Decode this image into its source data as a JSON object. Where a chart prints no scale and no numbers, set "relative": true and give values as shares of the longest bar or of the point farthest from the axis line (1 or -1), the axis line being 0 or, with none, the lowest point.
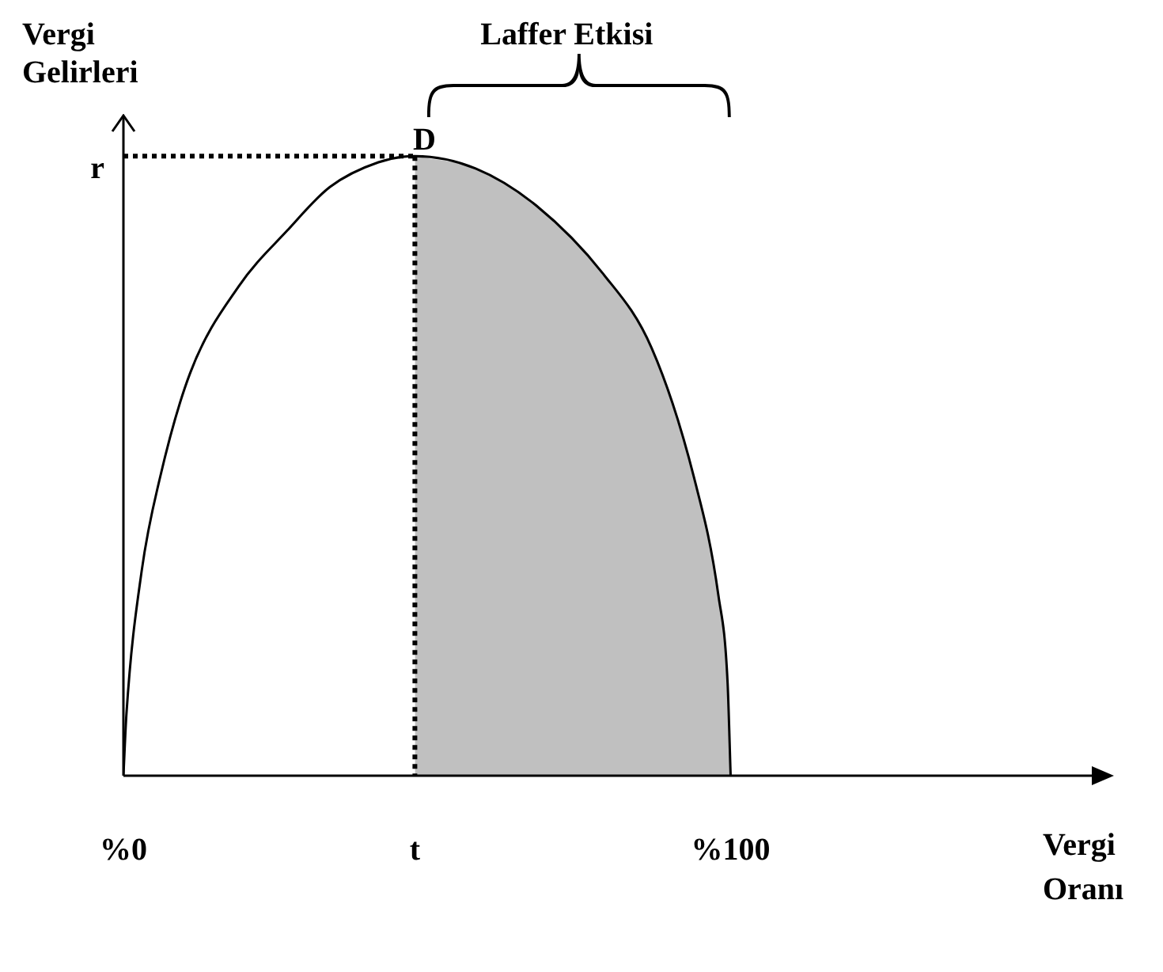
{
  "chart_data": {
    "type": "line",
    "relative": true,
    "xlabel": "Vergi Oranı",
    "ylabel": "Vergi Gelirleri",
    "x": [
      0,
      0.5,
      3,
      6,
      11,
      19,
      27,
      34,
      42,
      48,
      58,
      68,
      79,
      87,
      94,
      98,
      99.5,
      100
    ],
    "xlim": [
      0,
      160
    ],
    "xticks": [
      {
        "value": 0,
        "label": "%0"
      },
      {
        "value": 48,
        "label": "t"
      },
      {
        "value": 100,
        "label": "%100"
      }
    ],
    "series": [
      {
        "color": "#000000",
        "values": [
          0,
          0.1,
          0.33,
          0.48,
          0.65,
          0.79,
          0.88,
          0.95,
          0.99,
          1,
          0.98,
          0.92,
          0.81,
          0.69,
          0.48,
          0.29,
          0.15,
          0
        ]
      },
      {
        "type": "area",
        "color": "#c0c0c0",
        "x": [
          48,
          58,
          68,
          79,
          87,
          94,
          98,
          99.5,
          100
        ],
        "values": [
          1,
          0.98,
          0.92,
          0.81,
          0.69,
          0.48,
          0.29,
          0.15,
          0
        ]
      }
    ],
    "ref_lines": [
      {
        "axis": "y",
        "value": 1,
        "label": "r",
        "line_style": "dotted"
      },
      {
        "axis": "x",
        "value": 48,
        "line_style": "dotted"
      }
    ],
    "annotations": [
      "Laffer Etkisi",
      {
        "text": "D",
        "x": 48,
        "y": 1
      }
    ],
    "grid": false,
    "legend": false,
    "marker": "none"
  }
}
